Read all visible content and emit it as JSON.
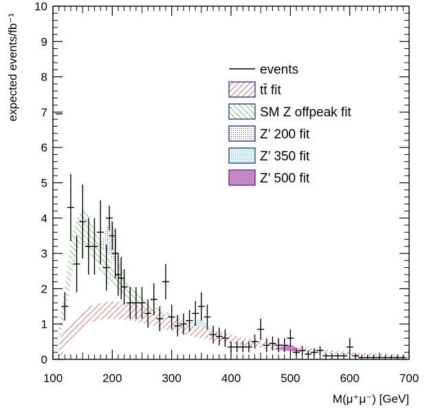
{
  "chart_data": {
    "type": "line",
    "title": "",
    "xlabel": "M(μ⁺μ⁻) [GeV]",
    "ylabel": "expected events/fb⁻¹",
    "xlim": [
      100,
      700
    ],
    "ylim": [
      0,
      10
    ],
    "x_ticks": [
      100,
      200,
      300,
      400,
      500,
      600,
      700
    ],
    "y_ticks": [
      0,
      1,
      2,
      3,
      4,
      5,
      6,
      7,
      8,
      9,
      10
    ],
    "x_tick_labels": [
      "100",
      "200",
      "300",
      "400",
      "500",
      "600",
      "700"
    ],
    "y_tick_labels": [
      "0",
      "1",
      "2",
      "3",
      "4",
      "5",
      "6",
      "7",
      "8",
      "9",
      "10"
    ],
    "legend": {
      "placement": "top-right",
      "entries": [
        {
          "label": "events",
          "style": "line",
          "color": "#000000"
        },
        {
          "label": "tt̄ fit",
          "style": "hatch",
          "color": "#e8303a"
        },
        {
          "label": "SM Z offpeak fit",
          "style": "hatch",
          "color": "#33bb33"
        },
        {
          "label": "Z’ 200 fit",
          "style": "dots",
          "color": "#3a3ad6"
        },
        {
          "label": "Z’ 350 fit",
          "style": "dots",
          "color": "#40d0e0"
        },
        {
          "label": "Z’ 500 fit",
          "style": "dots",
          "color": "#d020c0"
        }
      ]
    },
    "colors": {
      "ttbar": "#e8303a",
      "smz": "#33bb33",
      "zp200": "#3a3ad6",
      "zp350": "#40d0e0",
      "zp500": "#d020c0",
      "events": "#000000"
    },
    "series": [
      {
        "name": "tt̄ fit",
        "x": [
          110,
          120,
          130,
          140,
          150,
          160,
          170,
          180,
          190,
          200,
          210,
          220,
          230,
          240,
          250,
          260,
          270,
          280,
          290,
          300,
          320,
          340,
          360,
          380,
          400,
          420,
          440,
          460,
          480,
          500,
          520,
          540,
          560,
          580,
          600,
          620,
          640,
          660,
          680,
          700
        ],
        "low": [
          0,
          0.3,
          0.55,
          0.75,
          0.9,
          1.0,
          1.08,
          1.12,
          1.14,
          1.14,
          1.13,
          1.12,
          1.1,
          1.07,
          1.03,
          0.99,
          0.95,
          0.9,
          0.85,
          0.8,
          0.72,
          0.64,
          0.57,
          0.5,
          0.45,
          0.4,
          0.35,
          0.31,
          0.27,
          0.24,
          0.21,
          0.18,
          0.16,
          0.14,
          0.12,
          0.1,
          0.09,
          0.08,
          0.07,
          0.06
        ],
        "high": [
          0.55,
          0.85,
          1.05,
          1.25,
          1.38,
          1.48,
          1.55,
          1.6,
          1.63,
          1.64,
          1.63,
          1.61,
          1.58,
          1.54,
          1.49,
          1.44,
          1.38,
          1.32,
          1.26,
          1.2,
          1.08,
          0.97,
          0.87,
          0.78,
          0.7,
          0.62,
          0.55,
          0.49,
          0.43,
          0.38,
          0.34,
          0.3,
          0.27,
          0.24,
          0.21,
          0.19,
          0.17,
          0.15,
          0.14,
          0.13
        ]
      },
      {
        "name": "SM Z offpeak fit",
        "x": [
          110,
          120,
          130,
          140,
          150,
          160,
          170,
          180,
          190,
          200,
          210,
          220,
          230,
          240,
          250,
          260,
          270,
          280,
          290,
          300,
          320,
          340,
          360,
          380,
          400
        ],
        "low": [
          0.55,
          1.2,
          2.2,
          3.05,
          3.4,
          3.1,
          2.8,
          2.5,
          2.2,
          2.05,
          1.9,
          1.75,
          1.62,
          1.52,
          1.44,
          1.38,
          1.33,
          1.28,
          1.24,
          1.2,
          1.08,
          0.97,
          0.87,
          0.78,
          0.7
        ],
        "high": [
          0.9,
          2.0,
          3.4,
          4.0,
          4.25,
          4.1,
          3.7,
          3.3,
          2.95,
          2.7,
          2.45,
          2.25,
          2.05,
          1.88,
          1.72,
          1.6,
          1.5,
          1.42,
          1.34,
          1.27,
          1.13,
          1.01,
          0.9,
          0.8,
          0.72
        ]
      },
      {
        "name": "Z’ 200 fit",
        "x": [
          180,
          185,
          190,
          195,
          200,
          205,
          210,
          215,
          220
        ],
        "low": [
          3.3,
          3.15,
          3.05,
          2.95,
          2.82,
          2.7,
          2.55,
          2.45,
          2.3
        ],
        "high": [
          3.3,
          3.45,
          3.7,
          3.9,
          3.95,
          3.6,
          3.0,
          2.6,
          2.3
        ]
      },
      {
        "name": "Z’ 350 fit",
        "x": [
          320,
          330,
          340,
          345,
          350,
          355,
          360,
          370
        ],
        "low": [
          1.08,
          1.03,
          0.97,
          0.95,
          0.92,
          0.9,
          0.87,
          0.83
        ],
        "high": [
          1.08,
          1.05,
          1.08,
          1.12,
          1.15,
          1.08,
          0.98,
          0.83
        ]
      },
      {
        "name": "Z’ 500 fit",
        "x": [
          470,
          480,
          490,
          495,
          500,
          505,
          510,
          520
        ],
        "low": [
          0.29,
          0.27,
          0.25,
          0.25,
          0.24,
          0.23,
          0.22,
          0.21
        ],
        "high": [
          0.29,
          0.33,
          0.38,
          0.41,
          0.42,
          0.38,
          0.3,
          0.21
        ]
      },
      {
        "name": "events",
        "x": [
          110,
          120,
          130,
          140,
          150,
          160,
          170,
          180,
          190,
          195,
          200,
          205,
          210,
          215,
          220,
          230,
          240,
          250,
          260,
          270,
          280,
          290,
          300,
          310,
          320,
          330,
          340,
          350,
          360,
          370,
          380,
          390,
          400,
          410,
          420,
          430,
          440,
          450,
          460,
          470,
          480,
          490,
          500,
          510,
          520,
          530,
          540,
          550,
          560,
          570,
          580,
          590,
          600,
          610,
          620,
          630,
          640,
          650,
          660,
          670,
          680,
          690
        ],
        "y": [
          6.95,
          1.5,
          4.3,
          2.7,
          3.9,
          3.2,
          3.2,
          3.6,
          2.6,
          4.0,
          3.5,
          3.0,
          2.4,
          2.3,
          2.05,
          1.6,
          1.6,
          1.6,
          1.3,
          1.7,
          1.15,
          2.2,
          1.2,
          0.95,
          1.0,
          1.1,
          1.3,
          1.5,
          1.2,
          0.7,
          0.65,
          0.6,
          0.35,
          0.35,
          0.35,
          0.35,
          0.5,
          0.85,
          0.4,
          0.45,
          0.4,
          0.4,
          0.6,
          0.2,
          0.25,
          0.15,
          0.2,
          0.25,
          0.1,
          0.1,
          0.1,
          0.1,
          0.35,
          0.1,
          0.05,
          0.05,
          0.05,
          0.05,
          0.05,
          0.05,
          0.05,
          0.05
        ],
        "err": [
          0,
          0.4,
          0.95,
          0.8,
          1.05,
          0.8,
          0.8,
          0.9,
          0.65,
          0.35,
          0.4,
          0.7,
          0.6,
          0.6,
          0.5,
          0.45,
          0.45,
          0.45,
          0.4,
          0.45,
          0.35,
          0.5,
          0.35,
          0.3,
          0.3,
          0.3,
          0.35,
          0.4,
          0.35,
          0.25,
          0.25,
          0.25,
          0.15,
          0.15,
          0.15,
          0.15,
          0.2,
          0.3,
          0.2,
          0.2,
          0.2,
          0.2,
          0.25,
          0.12,
          0.12,
          0.1,
          0.12,
          0.12,
          0.07,
          0.07,
          0.07,
          0.07,
          0.25,
          0.07,
          0.05,
          0.05,
          0.05,
          0.05,
          0.05,
          0.05,
          0.05,
          0.05
        ]
      }
    ]
  }
}
